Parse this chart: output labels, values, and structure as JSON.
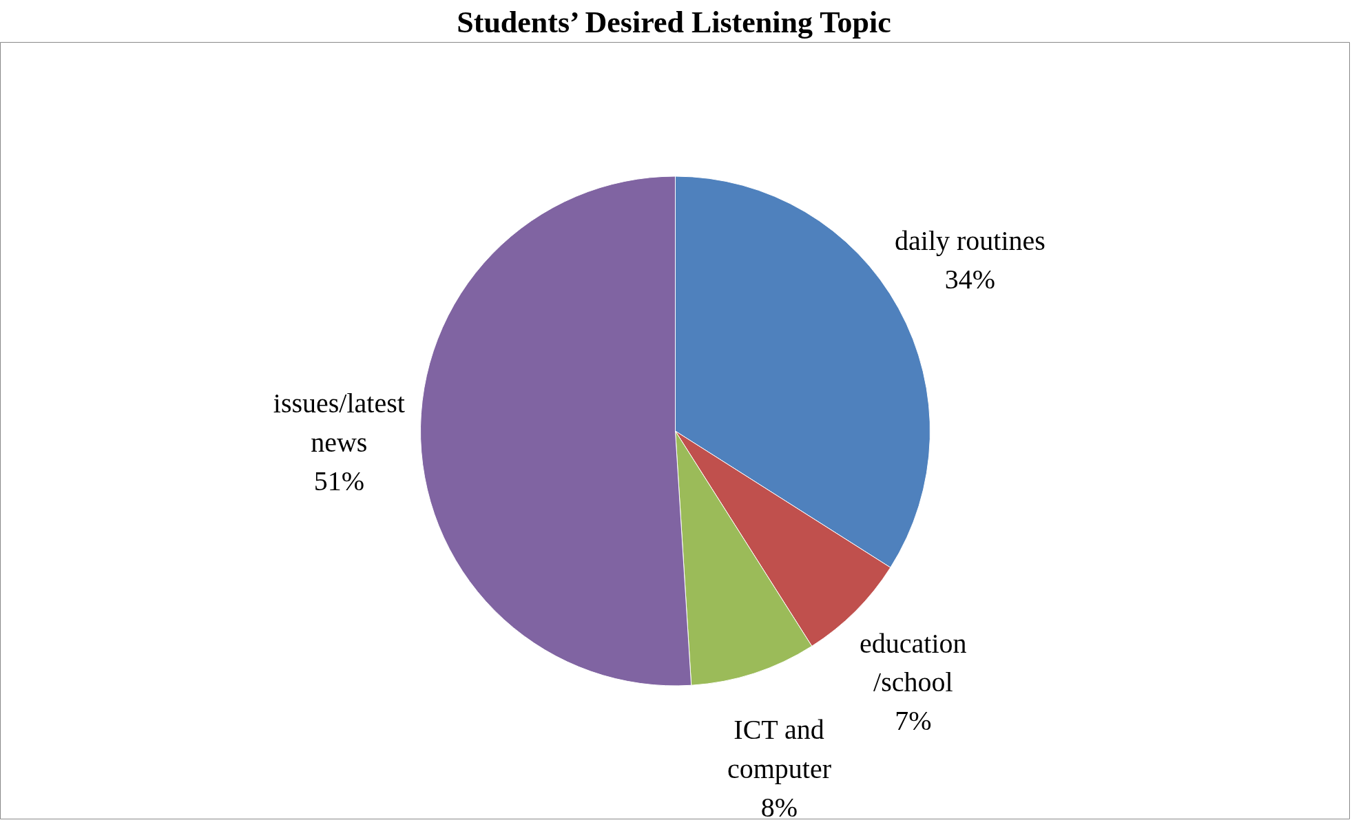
{
  "chart_data": {
    "type": "pie",
    "title": "Students’ Desired Listening Topic",
    "categories": [
      "daily routines",
      "education\n/school",
      "ICT and\ncomputer",
      "issues/latest\nnews"
    ],
    "values": [
      34,
      7,
      8,
      51
    ],
    "colors": [
      "#4f81bd",
      "#c0504d",
      "#9bbb59",
      "#8064a2"
    ],
    "value_labels": [
      "34%",
      "7%",
      "8%",
      "51%"
    ]
  }
}
